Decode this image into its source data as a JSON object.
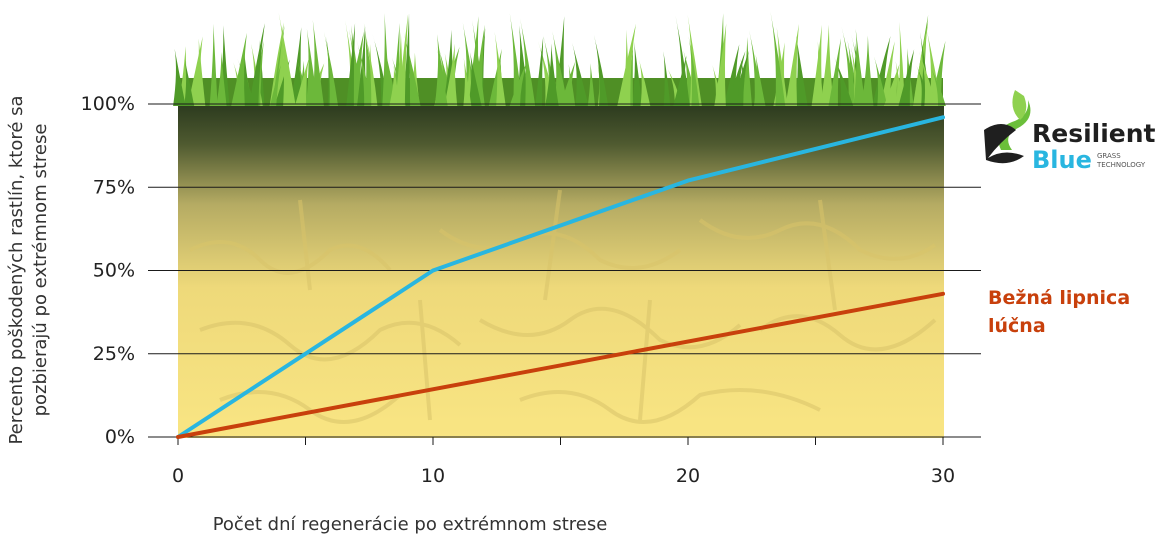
{
  "chart_data": {
    "type": "line",
    "title": "",
    "xlabel": "Počet dní regenerácie po extrémnom strese",
    "ylabel_lines": [
      "Percento poškodených rastlín, ktoré sa",
      "pozbierajú po extrémnom strese"
    ],
    "xlim": [
      0,
      30
    ],
    "ylim": [
      0,
      100
    ],
    "x_ticks": [
      0,
      10,
      20,
      30
    ],
    "x_tick_labels": [
      "0",
      "10",
      "20",
      "30"
    ],
    "y_ticks": [
      0,
      25,
      50,
      75,
      100
    ],
    "y_tick_labels": [
      "0%",
      "25%",
      "50%",
      "75%",
      "100%"
    ],
    "grid": true,
    "series": [
      {
        "label_lines": [],
        "color": "#29b6e0",
        "x": [
          0,
          10,
          20,
          30
        ],
        "y": [
          0,
          50,
          77,
          96
        ]
      },
      {
        "label_lines": [
          "Bežná lipnica",
          "lúčna"
        ],
        "color": "#c8400c",
        "x": [
          0,
          30
        ],
        "y": [
          0,
          43
        ]
      }
    ]
  },
  "logo": {
    "word1": "Resilient",
    "word2": "Blue",
    "tag1": "GRASS",
    "tag2": "TECHNOLOGY",
    "dark_color": "#1f1f1f",
    "blue_color": "#29b6e0",
    "green_color": "#6bbf3a"
  },
  "colors": {
    "grass_light": "#8fd14f",
    "grass_dark": "#3f7d1f",
    "soil_dark": "#2f3b20",
    "soil_mid": "#cfc27a",
    "soil_light": "#f7e27c"
  }
}
